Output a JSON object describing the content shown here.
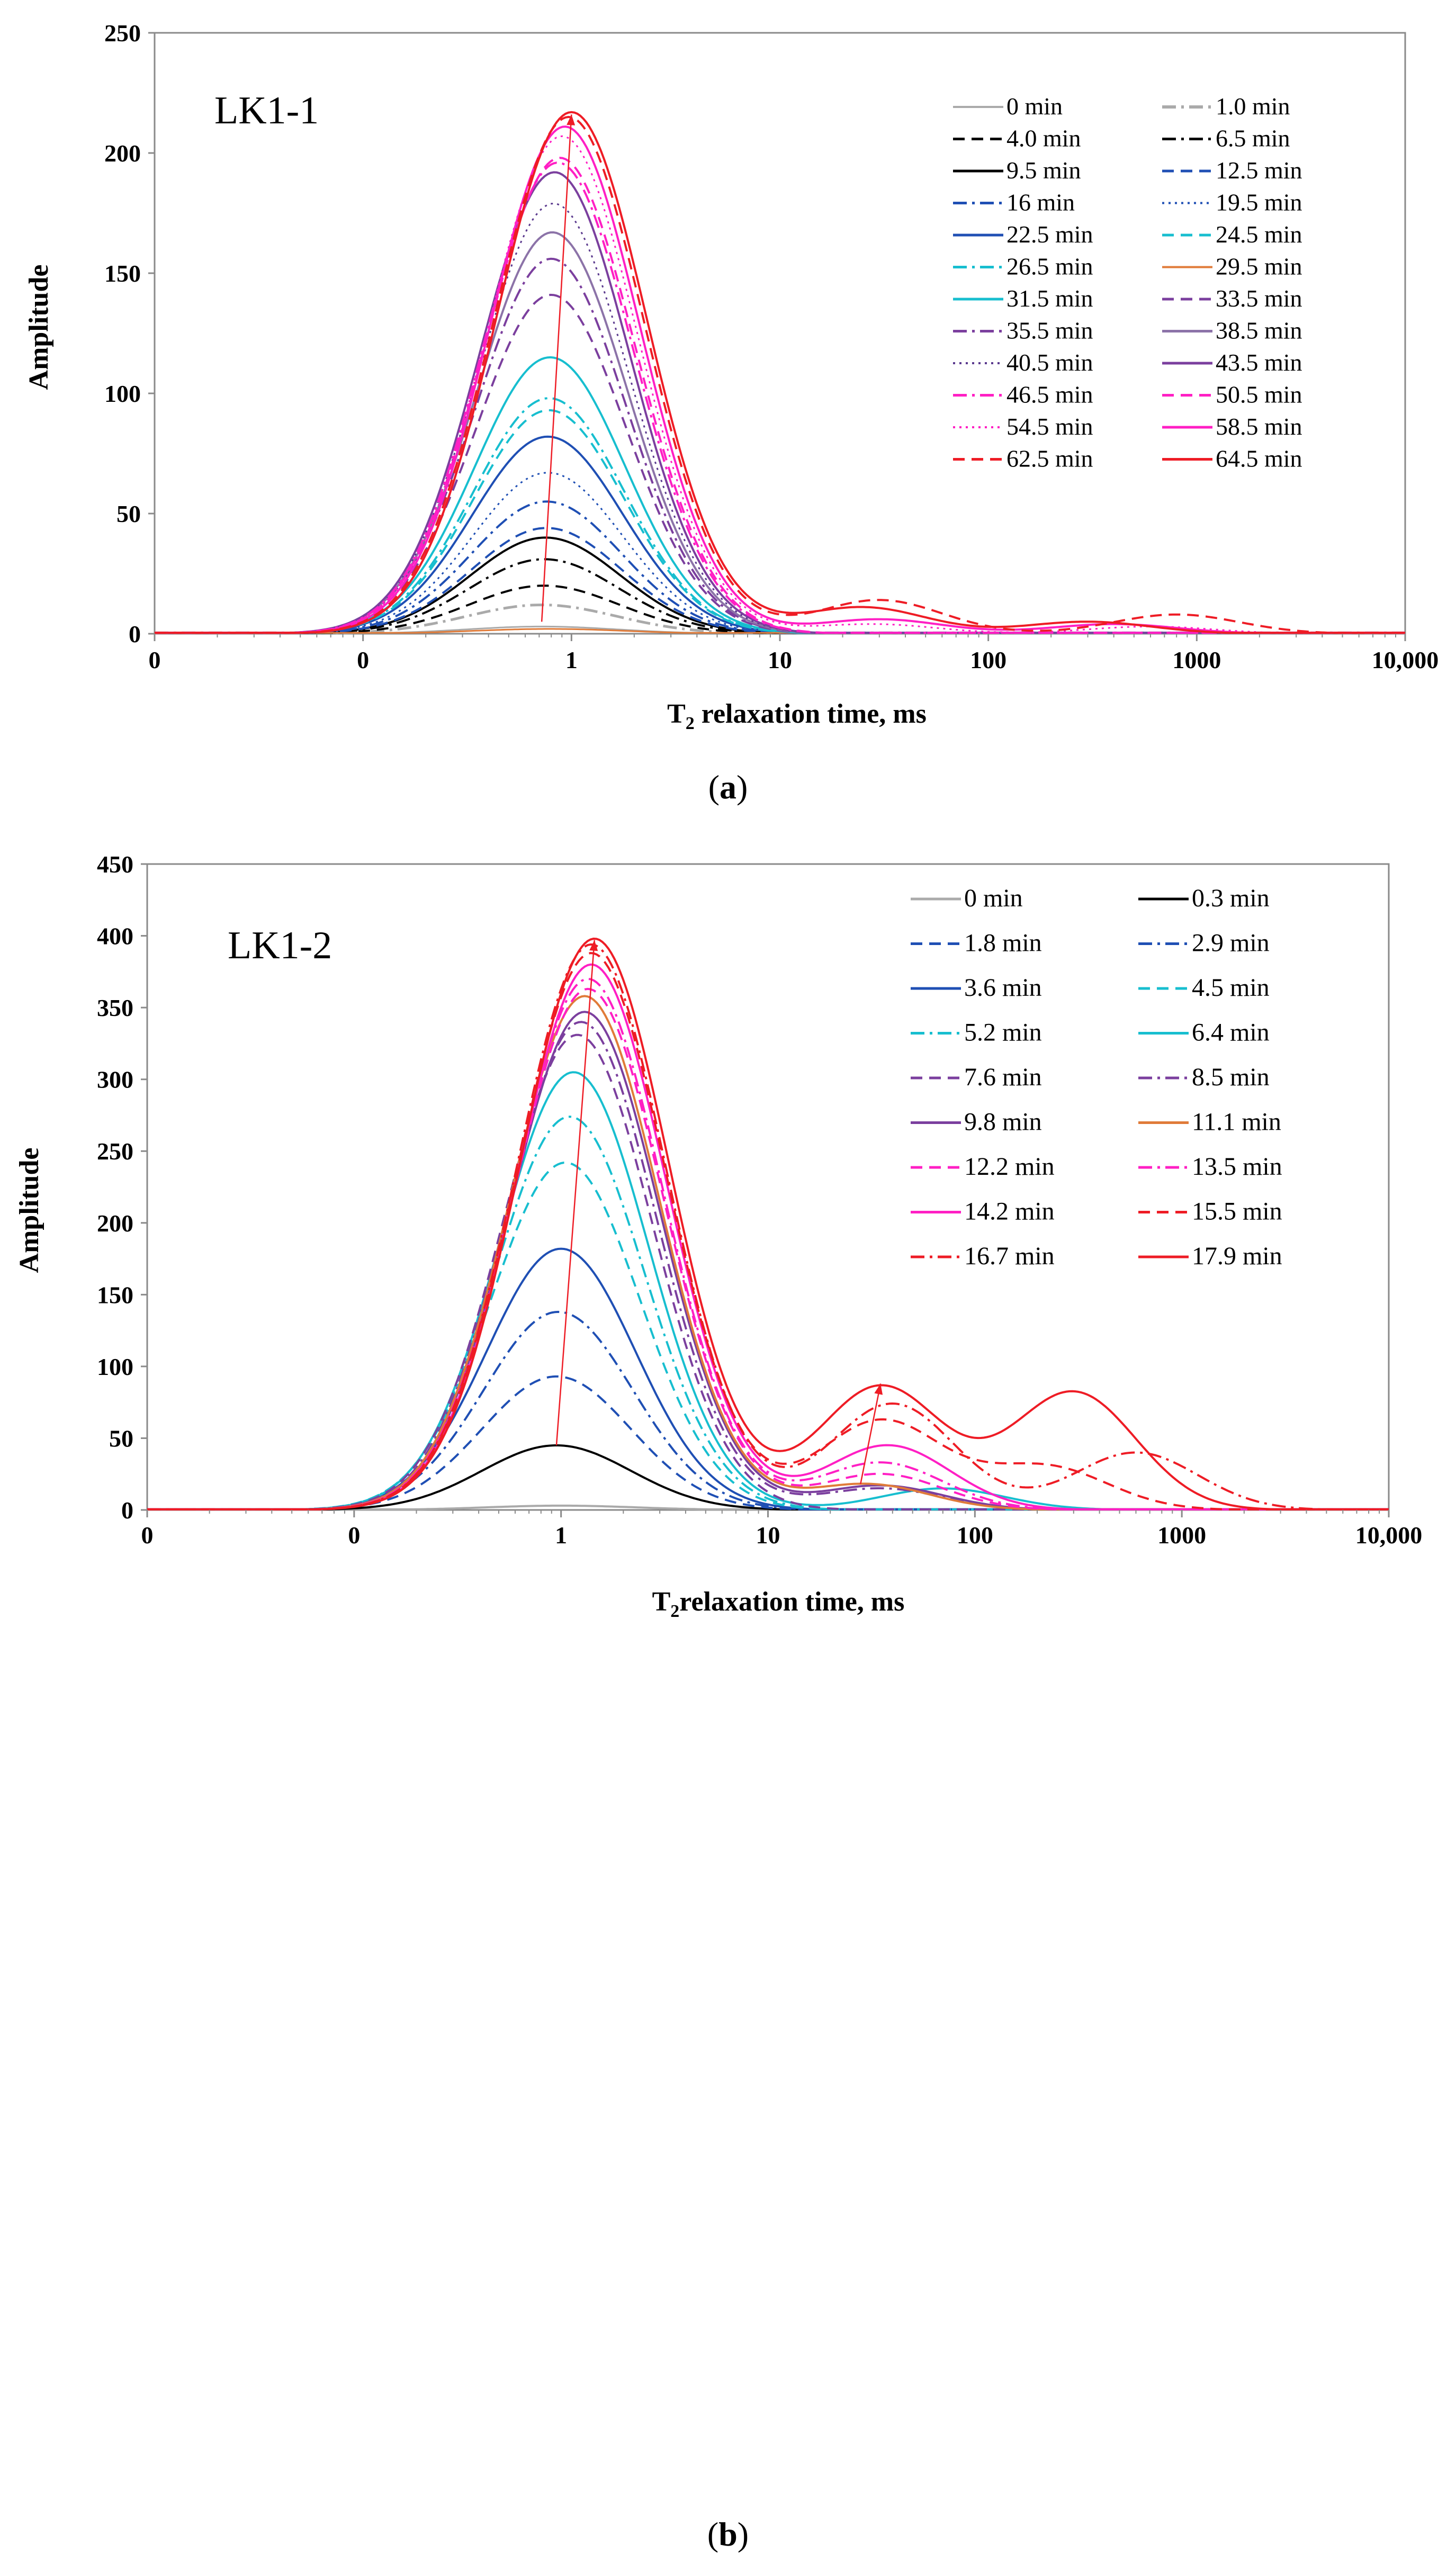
{
  "chart_data": [
    {
      "id": "a",
      "type": "line",
      "caption_letter": "a",
      "panel_label": "LK1-1",
      "xlabel": "T₂ relaxation time, ms",
      "ylabel": "Amplitude",
      "xscale": "log",
      "x_tick_values": [
        0.01,
        0.1,
        1,
        10,
        100,
        1000,
        10000
      ],
      "x_tick_labels": [
        "0",
        "0",
        "1",
        "10",
        "100",
        "1000",
        "10,000"
      ],
      "xlim": [
        0.01,
        10000
      ],
      "ylim": [
        0,
        250
      ],
      "y_ticks": [
        0,
        50,
        100,
        150,
        200,
        250
      ],
      "legend_position": "top-right",
      "series": [
        {
          "name": "0 min",
          "color": "#aaaaaa",
          "dash": "solid",
          "width": 3,
          "peaks": [
            [
              0.72,
              3
            ]
          ]
        },
        {
          "name": "1.0 min",
          "color": "#aaaaaa",
          "dash": "dashdot",
          "width": 5,
          "peaks": [
            [
              0.72,
              12
            ]
          ]
        },
        {
          "name": "4.0 min",
          "color": "#000000",
          "dash": "dash",
          "width": 4,
          "peaks": [
            [
              0.74,
              20
            ]
          ]
        },
        {
          "name": "6.5 min",
          "color": "#000000",
          "dash": "dashdot",
          "width": 4,
          "peaks": [
            [
              0.74,
              31
            ]
          ]
        },
        {
          "name": "9.5 min",
          "color": "#000000",
          "dash": "solid",
          "width": 4,
          "peaks": [
            [
              0.75,
              40
            ]
          ]
        },
        {
          "name": "12.5 min",
          "color": "#1f4fb4",
          "dash": "dash",
          "width": 4,
          "peaks": [
            [
              0.76,
              44
            ]
          ]
        },
        {
          "name": "16 min",
          "color": "#1f4fb4",
          "dash": "dashdot",
          "width": 4,
          "peaks": [
            [
              0.76,
              55
            ]
          ]
        },
        {
          "name": "19.5 min",
          "color": "#1f4fb4",
          "dash": "dot",
          "width": 3,
          "peaks": [
            [
              0.77,
              67
            ]
          ]
        },
        {
          "name": "22.5 min",
          "color": "#1f4fb4",
          "dash": "solid",
          "width": 4,
          "peaks": [
            [
              0.77,
              82
            ]
          ]
        },
        {
          "name": "24.5 min",
          "color": "#17becf",
          "dash": "dash",
          "width": 4,
          "peaks": [
            [
              0.78,
              93
            ]
          ]
        },
        {
          "name": "26.5 min",
          "color": "#17becf",
          "dash": "dashdot",
          "width": 4,
          "peaks": [
            [
              0.78,
              98
            ]
          ]
        },
        {
          "name": "29.5 min",
          "color": "#e07b39",
          "dash": "solid",
          "width": 3,
          "peaks": [
            [
              0.78,
              2
            ]
          ]
        },
        {
          "name": "31.5 min",
          "color": "#17becf",
          "dash": "solid",
          "width": 4,
          "peaks": [
            [
              0.79,
              115
            ]
          ]
        },
        {
          "name": "33.5 min",
          "color": "#7b3f9e",
          "dash": "dash",
          "width": 4,
          "peaks": [
            [
              0.8,
              141
            ]
          ]
        },
        {
          "name": "35.5 min",
          "color": "#7b3f9e",
          "dash": "dashdot",
          "width": 4,
          "peaks": [
            [
              0.8,
              156
            ]
          ]
        },
        {
          "name": "38.5 min",
          "color": "#8c73a8",
          "dash": "solid",
          "width": 4,
          "peaks": [
            [
              0.81,
              167
            ]
          ]
        },
        {
          "name": "40.5 min",
          "color": "#5b3a8e",
          "dash": "dot",
          "width": 3,
          "peaks": [
            [
              0.82,
              179
            ]
          ]
        },
        {
          "name": "43.5 min",
          "color": "#7b3f9e",
          "dash": "solid",
          "width": 4,
          "peaks": [
            [
              0.83,
              192
            ]
          ]
        },
        {
          "name": "46.5 min",
          "color": "#ff1fc4",
          "dash": "dashdot",
          "width": 4,
          "peaks": [
            [
              0.86,
              196
            ]
          ]
        },
        {
          "name": "50.5 min",
          "color": "#ff1fc4",
          "dash": "dash",
          "width": 4,
          "peaks": [
            [
              0.88,
              198
            ]
          ]
        },
        {
          "name": "54.5 min",
          "color": "#ff1fc4",
          "dash": "dot",
          "width": 3,
          "peaks": [
            [
              0.9,
              207
            ],
            [
              28,
              4
            ],
            [
              600,
              3
            ]
          ]
        },
        {
          "name": "58.5 min",
          "color": "#ff1fc4",
          "dash": "solid",
          "width": 4,
          "peaks": [
            [
              0.93,
              211
            ],
            [
              30,
              6
            ],
            [
              400,
              4
            ]
          ]
        },
        {
          "name": "62.5 min",
          "color": "#ee1c25",
          "dash": "dash",
          "width": 4,
          "peaks": [
            [
              0.97,
              215
            ],
            [
              30,
              14
            ],
            [
              800,
              8
            ]
          ]
        },
        {
          "name": "64.5 min",
          "color": "#ee1c25",
          "dash": "solid",
          "width": 4,
          "peaks": [
            [
              1.0,
              217
            ],
            [
              25,
              11
            ],
            [
              300,
              5
            ]
          ]
        }
      ],
      "trend_arrows": [
        {
          "from": [
            0.72,
            5
          ],
          "to": [
            1.0,
            216
          ]
        }
      ]
    },
    {
      "id": "b",
      "type": "line",
      "caption_letter": "b",
      "panel_label": "LK1-2",
      "xlabel": "T₂ relaxation time, ms",
      "ylabel": "Amplitude",
      "xscale": "log",
      "x_tick_values": [
        0.01,
        0.1,
        1,
        10,
        100,
        1000,
        10000
      ],
      "x_tick_labels": [
        "0",
        "0",
        "1",
        "10",
        "100",
        "1000",
        "10,000"
      ],
      "xlim": [
        0.01,
        10000
      ],
      "ylim": [
        0,
        450
      ],
      "y_ticks": [
        0,
        50,
        100,
        150,
        200,
        250,
        300,
        350,
        400,
        450
      ],
      "legend_position": "top-right",
      "series": [
        {
          "name": "0 min",
          "color": "#aaaaaa",
          "dash": "solid",
          "width": 4,
          "peaks": [
            [
              1.0,
              3
            ]
          ]
        },
        {
          "name": "0.3 min",
          "color": "#000000",
          "dash": "solid",
          "width": 4,
          "peaks": [
            [
              0.95,
              45
            ]
          ]
        },
        {
          "name": "1.8 min",
          "color": "#1f4fb4",
          "dash": "dash",
          "width": 4,
          "peaks": [
            [
              0.95,
              93
            ]
          ]
        },
        {
          "name": "2.9 min",
          "color": "#1f4fb4",
          "dash": "dashdot",
          "width": 4,
          "peaks": [
            [
              0.97,
              138
            ]
          ]
        },
        {
          "name": "3.6 min",
          "color": "#1f4fb4",
          "dash": "solid",
          "width": 4,
          "peaks": [
            [
              1.0,
              182
            ]
          ]
        },
        {
          "name": "4.5 min",
          "color": "#17becf",
          "dash": "dash",
          "width": 4,
          "peaks": [
            [
              1.05,
              242
            ]
          ]
        },
        {
          "name": "5.2 min",
          "color": "#17becf",
          "dash": "dashdot",
          "width": 4,
          "peaks": [
            [
              1.1,
              274
            ]
          ]
        },
        {
          "name": "6.4 min",
          "color": "#17becf",
          "dash": "solid",
          "width": 4,
          "peaks": [
            [
              1.15,
              305
            ],
            [
              70,
              15
            ]
          ]
        },
        {
          "name": "7.6 min",
          "color": "#7b3f9e",
          "dash": "dash",
          "width": 4,
          "peaks": [
            [
              1.2,
              331
            ]
          ]
        },
        {
          "name": "8.5 min",
          "color": "#7b3f9e",
          "dash": "dashdot",
          "width": 4,
          "peaks": [
            [
              1.25,
              340
            ],
            [
              35,
              15
            ]
          ]
        },
        {
          "name": "9.8 min",
          "color": "#7b3f9e",
          "dash": "solid",
          "width": 4,
          "peaks": [
            [
              1.3,
              347
            ],
            [
              35,
              17
            ]
          ]
        },
        {
          "name": "11.1 min",
          "color": "#e07b39",
          "dash": "solid",
          "width": 4,
          "peaks": [
            [
              1.3,
              358
            ],
            [
              30,
              18
            ]
          ]
        },
        {
          "name": "12.2 min",
          "color": "#ff1fc4",
          "dash": "dash",
          "width": 4,
          "peaks": [
            [
              1.35,
              363
            ],
            [
              35,
              25
            ]
          ]
        },
        {
          "name": "13.5 min",
          "color": "#ff1fc4",
          "dash": "dashdot",
          "width": 4,
          "peaks": [
            [
              1.35,
              370
            ],
            [
              35,
              33
            ]
          ]
        },
        {
          "name": "14.2 min",
          "color": "#ff1fc4",
          "dash": "solid",
          "width": 4,
          "peaks": [
            [
              1.4,
              380
            ],
            [
              38,
              45
            ]
          ]
        },
        {
          "name": "15.5 min",
          "color": "#ee1c25",
          "dash": "dash",
          "width": 4,
          "peaks": [
            [
              1.4,
              388
            ],
            [
              35,
              62
            ],
            [
              220,
              30
            ]
          ]
        },
        {
          "name": "16.7 min",
          "color": "#ee1c25",
          "dash": "dashdot",
          "width": 4,
          "peaks": [
            [
              1.4,
              394
            ],
            [
              40,
              74
            ],
            [
              600,
              40
            ]
          ]
        },
        {
          "name": "17.9 min",
          "color": "#ee1c25",
          "dash": "solid",
          "width": 4,
          "peaks": [
            [
              1.45,
              398
            ],
            [
              35,
              86
            ],
            [
              300,
              82
            ]
          ]
        }
      ],
      "trend_arrows": [
        {
          "from": [
            0.95,
            45
          ],
          "to": [
            1.45,
            397
          ]
        },
        {
          "from": [
            28,
            18
          ],
          "to": [
            35,
            88
          ]
        }
      ]
    }
  ]
}
